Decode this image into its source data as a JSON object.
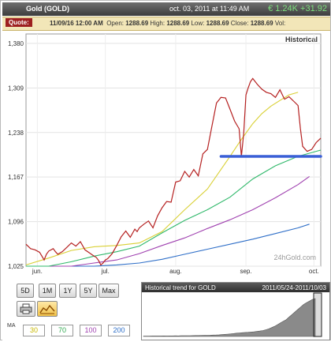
{
  "window": {
    "symbol": "Gold (GOLD)",
    "datetime": "oct. 03, 2011 at 11:49 AM",
    "price_change": "€ 1.24K +31.92"
  },
  "quote": {
    "label": "Quote:",
    "date": "11/09/16 12:00 AM",
    "open_label": "Open:",
    "open": "1288.69",
    "high_label": "High:",
    "high": "1288.69",
    "low_label": "Low:",
    "low": "1288.69",
    "close_label": "Close:",
    "close": "1288.69",
    "vol_label": "Vol:"
  },
  "chart_data": {
    "type": "line",
    "mode_label": "Historical",
    "watermark": "24hGold.com",
    "ylim": [
      1025,
      1395
    ],
    "yticks": [
      1025,
      1096,
      1167,
      1238,
      1309,
      1380
    ],
    "ytick_labels": [
      "1,025",
      "1,096",
      "1,167",
      "1,238",
      "1,309",
      "1,380"
    ],
    "x_range": [
      0,
      130
    ],
    "xticks": [
      {
        "label": "jun.",
        "x": 5
      },
      {
        "label": "jul.",
        "x": 35
      },
      {
        "label": "aug.",
        "x": 66
      },
      {
        "label": "sep.",
        "x": 97
      },
      {
        "label": "oct.",
        "x": 127
      }
    ],
    "grid": true,
    "support_line": {
      "x_start": 86,
      "x_end": 130,
      "y": 1200,
      "color": "#3a5fd6"
    },
    "series": [
      {
        "color": "#b52020",
        "x": [
          0,
          2,
          4,
          6,
          8,
          9,
          10,
          12,
          13,
          14,
          16,
          18,
          20,
          22,
          24,
          26,
          28,
          30,
          31,
          32,
          33,
          34,
          35,
          36,
          38,
          40,
          42,
          44,
          46,
          48,
          49,
          50,
          52,
          54,
          56,
          58,
          60,
          62,
          64,
          66,
          68,
          70,
          72,
          74,
          76,
          78,
          80,
          82,
          84,
          86,
          88,
          90,
          92,
          94,
          95,
          96,
          97,
          98,
          99,
          100,
          102,
          104,
          106,
          108,
          110,
          112,
          114,
          116,
          118,
          120,
          121,
          122,
          124,
          126,
          128,
          130
        ],
        "y": [
          1060,
          1053,
          1051,
          1047,
          1035,
          1044,
          1049,
          1053,
          1048,
          1044,
          1048,
          1055,
          1062,
          1057,
          1064,
          1051,
          1046,
          1041,
          1039,
          1034,
          1027,
          1030,
          1035,
          1037,
          1045,
          1058,
          1072,
          1081,
          1071,
          1084,
          1080,
          1086,
          1092,
          1097,
          1086,
          1105,
          1118,
          1128,
          1127,
          1159,
          1161,
          1176,
          1167,
          1179,
          1169,
          1204,
          1211,
          1248,
          1285,
          1294,
          1293,
          1275,
          1256,
          1244,
          1200,
          1236,
          1298,
          1309,
          1319,
          1324,
          1315,
          1307,
          1302,
          1300,
          1294,
          1306,
          1291,
          1295,
          1288,
          1281,
          1245,
          1216,
          1208,
          1211,
          1222,
          1229
        ]
      },
      {
        "color": "#d9d034",
        "x": [
          0,
          10,
          20,
          30,
          40,
          50,
          60,
          70,
          80,
          90,
          95,
          100,
          104,
          108,
          112,
          116,
          120
        ],
        "y": [
          1027,
          1038,
          1050,
          1056,
          1058,
          1062,
          1080,
          1115,
          1148,
          1200,
          1227,
          1252,
          1268,
          1280,
          1289,
          1298,
          1302
        ]
      },
      {
        "color": "#2fb86a",
        "x": [
          0,
          10,
          20,
          30,
          40,
          50,
          60,
          70,
          80,
          90,
          100,
          110,
          120,
          125,
          130
        ],
        "y": [
          1025,
          1025,
          1032,
          1041,
          1048,
          1057,
          1078,
          1098,
          1115,
          1135,
          1164,
          1185,
          1200,
          1205,
          1210
        ]
      },
      {
        "color": "#a042b0",
        "x": [
          0,
          10,
          20,
          30,
          40,
          50,
          60,
          70,
          80,
          90,
          100,
          110,
          120,
          125
        ],
        "y": [
          1025,
          1025,
          1025,
          1030,
          1035,
          1045,
          1058,
          1070,
          1085,
          1099,
          1115,
          1134,
          1155,
          1168
        ]
      },
      {
        "color": "#2f6fc8",
        "x": [
          0,
          10,
          20,
          30,
          40,
          50,
          60,
          70,
          80,
          90,
          100,
          110,
          120,
          125
        ],
        "y": [
          1025,
          1025,
          1025,
          1025,
          1027,
          1030,
          1036,
          1044,
          1052,
          1060,
          1068,
          1077,
          1086,
          1092
        ]
      }
    ]
  },
  "controls": {
    "periods": [
      "5D",
      "1M",
      "1Y",
      "5Y",
      "Max"
    ],
    "print_icon": "printer-icon",
    "chart_icon": "chart-mode-icon",
    "ma_label": "MA",
    "ma_values": [
      {
        "value": "30",
        "color": "#c8b800"
      },
      {
        "value": "70",
        "color": "#2fa84f"
      },
      {
        "value": "100",
        "color": "#a042b0"
      },
      {
        "value": "200",
        "color": "#2f6fc8"
      }
    ]
  },
  "historical_trend": {
    "title": "Historical trend for GOLD",
    "range": "2011/05/24-2011/10/03",
    "values": [
      1,
      1,
      1,
      1.1,
      1.2,
      1.1,
      1.2,
      1.3,
      1.2,
      1.3,
      1.4,
      1.5,
      1.4,
      1.6,
      1.7,
      1.8,
      1.9,
      2,
      2.2,
      2.3,
      2.4,
      2.6,
      2.8,
      3,
      3.3,
      3.6,
      4,
      4.5,
      5,
      5.6,
      6.2,
      7,
      7.8,
      8.4,
      9,
      9.6,
      10,
      10.5,
      11,
      12,
      13,
      14,
      16,
      18,
      21,
      24,
      28,
      32,
      36,
      40,
      46,
      52,
      58,
      64,
      70,
      76,
      80,
      84,
      88,
      90
    ]
  }
}
